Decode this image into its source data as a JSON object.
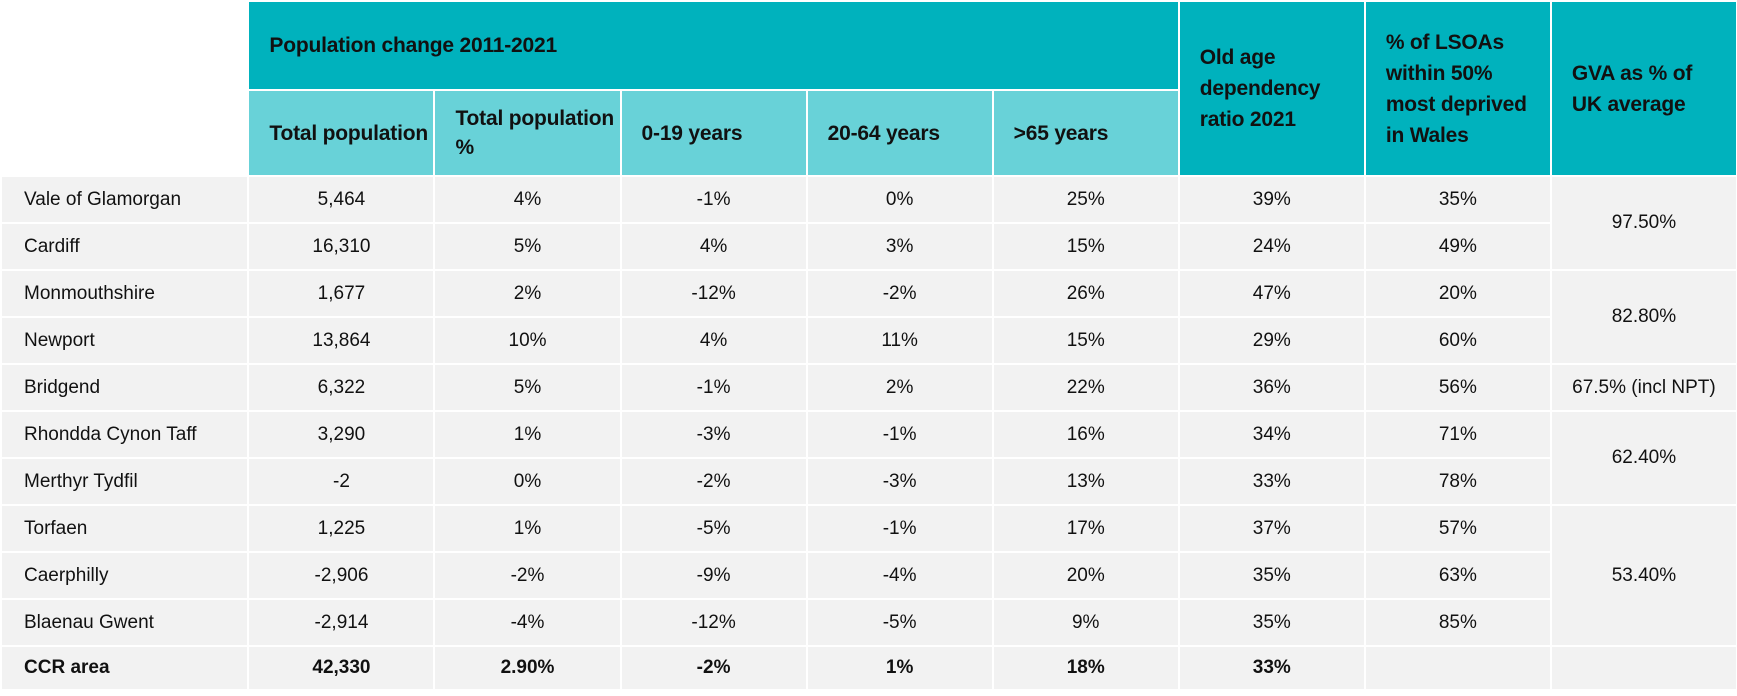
{
  "header": {
    "group_label": "Population change 2011-2021",
    "columns": [
      "Total population",
      "Total population %",
      "0-19 years",
      "20-64 years",
      ">65 years"
    ],
    "old_age": "Old age dependency ratio 2021",
    "lsoa": "% of LSOAs within 50% most deprived in Wales",
    "gva": "GVA as % of UK average"
  },
  "rows": [
    {
      "name": "Vale of Glamorgan",
      "total": "5,464",
      "pct": "4%",
      "y0_19": "-1%",
      "y20_64": "0%",
      "y65": "25%",
      "oad": "39%",
      "lsoa": "35%"
    },
    {
      "name": "Cardiff",
      "total": "16,310",
      "pct": "5%",
      "y0_19": "4%",
      "y20_64": "3%",
      "y65": "15%",
      "oad": "24%",
      "lsoa": "49%"
    },
    {
      "name": "Monmouthshire",
      "total": "1,677",
      "pct": "2%",
      "y0_19": "-12%",
      "y20_64": "-2%",
      "y65": "26%",
      "oad": "47%",
      "lsoa": "20%"
    },
    {
      "name": "Newport",
      "total": "13,864",
      "pct": "10%",
      "y0_19": "4%",
      "y20_64": "11%",
      "y65": "15%",
      "oad": "29%",
      "lsoa": "60%"
    },
    {
      "name": "Bridgend",
      "total": "6,322",
      "pct": "5%",
      "y0_19": "-1%",
      "y20_64": "2%",
      "y65": "22%",
      "oad": "36%",
      "lsoa": "56%"
    },
    {
      "name": "Rhondda Cynon Taff",
      "total": "3,290",
      "pct": "1%",
      "y0_19": "-3%",
      "y20_64": "-1%",
      "y65": "16%",
      "oad": "34%",
      "lsoa": "71%"
    },
    {
      "name": "Merthyr Tydfil",
      "total": "-2",
      "pct": "0%",
      "y0_19": "-2%",
      "y20_64": "-3%",
      "y65": "13%",
      "oad": "33%",
      "lsoa": "78%"
    },
    {
      "name": "Torfaen",
      "total": "1,225",
      "pct": "1%",
      "y0_19": "-5%",
      "y20_64": "-1%",
      "y65": "17%",
      "oad": "37%",
      "lsoa": "57%"
    },
    {
      "name": "Caerphilly",
      "total": "-2,906",
      "pct": "-2%",
      "y0_19": "-9%",
      "y20_64": "-4%",
      "y65": "20%",
      "oad": "35%",
      "lsoa": "63%"
    },
    {
      "name": "Blaenau Gwent",
      "total": "-2,914",
      "pct": "-4%",
      "y0_19": "-12%",
      "y20_64": "-5%",
      "y65": "9%",
      "oad": "35%",
      "lsoa": "85%"
    }
  ],
  "gva": [
    "97.50%",
    "82.80%",
    "67.5% (incl NPT)",
    "62.40%",
    "53.40%"
  ],
  "total_row": {
    "name": "CCR area",
    "total": "42,330",
    "pct": "2.90%",
    "y0_19": "-2%",
    "y20_64": "1%",
    "y65": "18%",
    "oad": "33%"
  }
}
